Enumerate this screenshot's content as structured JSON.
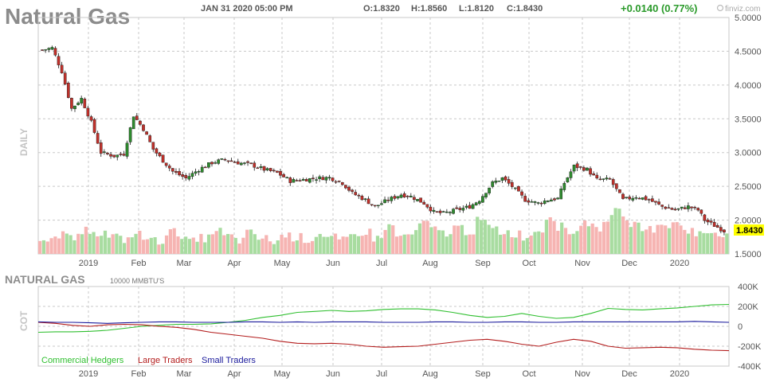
{
  "header": {
    "title": "Natural Gas",
    "datetime": "JAN 31 2020 05:00 PM",
    "open": "O:1.8320",
    "high": "H:1.8560",
    "low": "L:1.8120",
    "close": "C:1.8430",
    "change": "+0.0140 (0.77%)",
    "brand": "finviz.com"
  },
  "colors": {
    "up": "#2e8b2e",
    "down": "#c0312b",
    "candle_outline": "#1a1a1a",
    "vol_up": "#a8dca0",
    "vol_down": "#f6b4b2",
    "grid": "#c8c8c8",
    "commercial": "#2fbf2f",
    "large": "#b31c1c",
    "small": "#1a1a9c",
    "price_tag_bg": "#ffff00",
    "change_color": "#2a9a2a"
  },
  "chart_data": [
    {
      "type": "candlestick",
      "side_label": "DAILY",
      "x_labels": [
        "2019",
        "Feb",
        "Mar",
        "Apr",
        "May",
        "Jun",
        "Jul",
        "Aug",
        "Sep",
        "Oct",
        "Nov",
        "Dec",
        "2020"
      ],
      "y_labels": [
        "5.0000",
        "4.5000",
        "4.0000",
        "3.5000",
        "3.0000",
        "2.5000",
        "2.0000",
        "1.5000"
      ],
      "ylim": [
        1.5,
        5.0
      ],
      "last_price": "1.8430",
      "close_path": [
        [
          0,
          4.52
        ],
        [
          3,
          4.55
        ],
        [
          6,
          4.2
        ],
        [
          9,
          3.65
        ],
        [
          12,
          3.8
        ],
        [
          15,
          3.45
        ],
        [
          18,
          3.0
        ],
        [
          22,
          2.95
        ],
        [
          25,
          2.98
        ],
        [
          28,
          3.55
        ],
        [
          31,
          3.35
        ],
        [
          34,
          3.05
        ],
        [
          37,
          2.88
        ],
        [
          40,
          2.72
        ],
        [
          44,
          2.62
        ],
        [
          48,
          2.75
        ],
        [
          52,
          2.85
        ],
        [
          56,
          2.9
        ],
        [
          60,
          2.85
        ],
        [
          64,
          2.82
        ],
        [
          68,
          2.75
        ],
        [
          72,
          2.7
        ],
        [
          76,
          2.58
        ],
        [
          80,
          2.6
        ],
        [
          84,
          2.62
        ],
        [
          88,
          2.63
        ],
        [
          92,
          2.55
        ],
        [
          95,
          2.4
        ],
        [
          99,
          2.3
        ],
        [
          102,
          2.2
        ],
        [
          106,
          2.3
        ],
        [
          110,
          2.38
        ],
        [
          113,
          2.35
        ],
        [
          117,
          2.25
        ],
        [
          120,
          2.12
        ],
        [
          123,
          2.1
        ],
        [
          127,
          2.15
        ],
        [
          131,
          2.2
        ],
        [
          134,
          2.3
        ],
        [
          138,
          2.55
        ],
        [
          141,
          2.62
        ],
        [
          144,
          2.5
        ],
        [
          148,
          2.3
        ],
        [
          152,
          2.25
        ],
        [
          155,
          2.3
        ],
        [
          158,
          2.32
        ],
        [
          160,
          2.55
        ],
        [
          163,
          2.8
        ],
        [
          167,
          2.75
        ],
        [
          170,
          2.6
        ],
        [
          174,
          2.6
        ],
        [
          178,
          2.3
        ],
        [
          182,
          2.35
        ],
        [
          186,
          2.3
        ],
        [
          190,
          2.2
        ],
        [
          194,
          2.15
        ],
        [
          198,
          2.2
        ],
        [
          201,
          2.15
        ],
        [
          203,
          2.0
        ],
        [
          206,
          1.92
        ],
        [
          209,
          1.84
        ]
      ],
      "volume_levels": [
        0.38,
        0.32,
        0.42,
        0.36,
        0.55,
        0.48,
        0.4,
        0.33,
        0.45,
        0.35,
        0.3,
        0.5,
        0.44,
        0.28,
        0.36,
        0.52,
        0.4,
        0.31,
        0.47,
        0.35,
        0.29,
        0.42,
        0.38,
        0.33,
        0.45,
        0.37,
        0.3,
        0.41,
        0.5,
        0.36,
        0.62,
        0.4,
        0.45,
        0.7,
        0.55,
        0.48,
        0.6,
        0.52,
        0.75,
        0.58,
        0.5,
        0.46,
        0.4,
        0.55,
        0.85,
        0.62,
        0.5,
        0.72,
        0.6,
        0.8,
        0.95,
        0.7,
        0.62,
        0.58,
        0.65,
        0.68,
        0.55,
        0.45,
        0.5,
        0.48
      ]
    },
    {
      "type": "line",
      "title": "NATURAL GAS",
      "unit_label": "10000 MMBTU'S",
      "side_label": "COT",
      "x_labels": [
        "2019",
        "Feb",
        "Mar",
        "Apr",
        "May",
        "Jun",
        "Jul",
        "Aug",
        "Sep",
        "Oct",
        "Nov",
        "Dec",
        "2020"
      ],
      "y_labels": [
        "400K",
        "200K",
        "0",
        "-200K",
        "-400K"
      ],
      "ylim": [
        -400,
        400
      ],
      "series": [
        {
          "name": "Commercial Hedgers",
          "values": [
            -60,
            -55,
            -55,
            -50,
            -40,
            -20,
            0,
            10,
            20,
            20,
            25,
            40,
            60,
            90,
            110,
            140,
            150,
            160,
            150,
            155,
            170,
            175,
            175,
            165,
            140,
            110,
            90,
            100,
            130,
            100,
            80,
            90,
            130,
            180,
            170,
            165,
            175,
            185,
            200,
            215,
            220
          ]
        },
        {
          "name": "Large Traders",
          "values": [
            40,
            30,
            10,
            0,
            15,
            20,
            15,
            0,
            -10,
            -30,
            -60,
            -80,
            -100,
            -120,
            -150,
            -170,
            -175,
            -170,
            -180,
            -200,
            -210,
            -205,
            -200,
            -180,
            -160,
            -140,
            -130,
            -150,
            -180,
            -200,
            -160,
            -130,
            -150,
            -200,
            -220,
            -215,
            -210,
            -215,
            -230,
            -240,
            -245
          ]
        },
        {
          "name": "Small Traders",
          "values": [
            45,
            40,
            40,
            35,
            30,
            35,
            40,
            45,
            45,
            40,
            40,
            40,
            45,
            45,
            40,
            45,
            40,
            45,
            45,
            45,
            40,
            40,
            40,
            45,
            45,
            40,
            40,
            45,
            45,
            40,
            40,
            45,
            45,
            45,
            45,
            45,
            45,
            45,
            50,
            45,
            40
          ]
        }
      ]
    }
  ]
}
